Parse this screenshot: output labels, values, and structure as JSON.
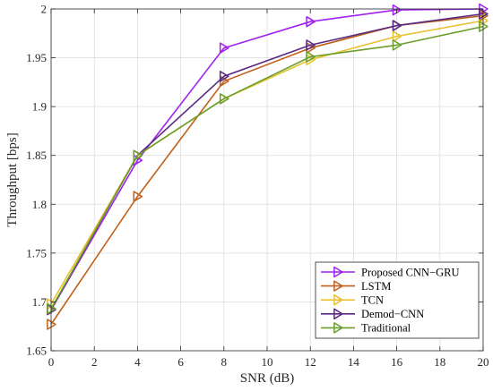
{
  "chart_data": {
    "type": "line",
    "xlabel": "SNR (dB)",
    "ylabel": "Throughput [bps]",
    "xlim": [
      0,
      20
    ],
    "ylim": [
      1.65,
      2.0
    ],
    "xticks": [
      0,
      2,
      4,
      6,
      8,
      10,
      12,
      14,
      16,
      18,
      20
    ],
    "yticks": [
      1.65,
      1.7,
      1.75,
      1.8,
      1.85,
      1.9,
      1.95,
      2.0
    ],
    "xtick_labels": [
      "0",
      "2",
      "4",
      "6",
      "8",
      "10",
      "12",
      "14",
      "16",
      "18",
      "20"
    ],
    "ytick_labels": [
      "1.65",
      "1.7",
      "1.75",
      "1.8",
      "1.85",
      "1.9",
      "1.95",
      "2"
    ],
    "grid": true,
    "legend_position": "bottom-right",
    "marker": "triangle-right",
    "series": [
      {
        "name": "Proposed CNN−GRU",
        "color": "#a020f0",
        "x": [
          0,
          4,
          8,
          12,
          16,
          20
        ],
        "y": [
          1.692,
          1.845,
          1.96,
          1.987,
          1.999,
          2.0
        ]
      },
      {
        "name": "LSTM",
        "color": "#c0601a",
        "x": [
          0,
          4,
          8,
          12,
          16,
          20
        ],
        "y": [
          1.677,
          1.808,
          1.926,
          1.96,
          1.983,
          1.993
        ]
      },
      {
        "name": "TCN",
        "color": "#e8c030",
        "x": [
          0,
          4,
          8,
          12,
          16,
          20
        ],
        "y": [
          1.698,
          1.85,
          1.908,
          1.948,
          1.972,
          1.988
        ]
      },
      {
        "name": "Demod−CNN",
        "color": "#5a2a82",
        "x": [
          0,
          4,
          8,
          12,
          16,
          20
        ],
        "y": [
          1.692,
          1.85,
          1.931,
          1.963,
          1.983,
          1.995
        ]
      },
      {
        "name": "Traditional",
        "color": "#6b9e2a",
        "x": [
          0,
          4,
          8,
          12,
          16,
          20
        ],
        "y": [
          1.693,
          1.85,
          1.908,
          1.951,
          1.963,
          1.982
        ]
      }
    ]
  }
}
